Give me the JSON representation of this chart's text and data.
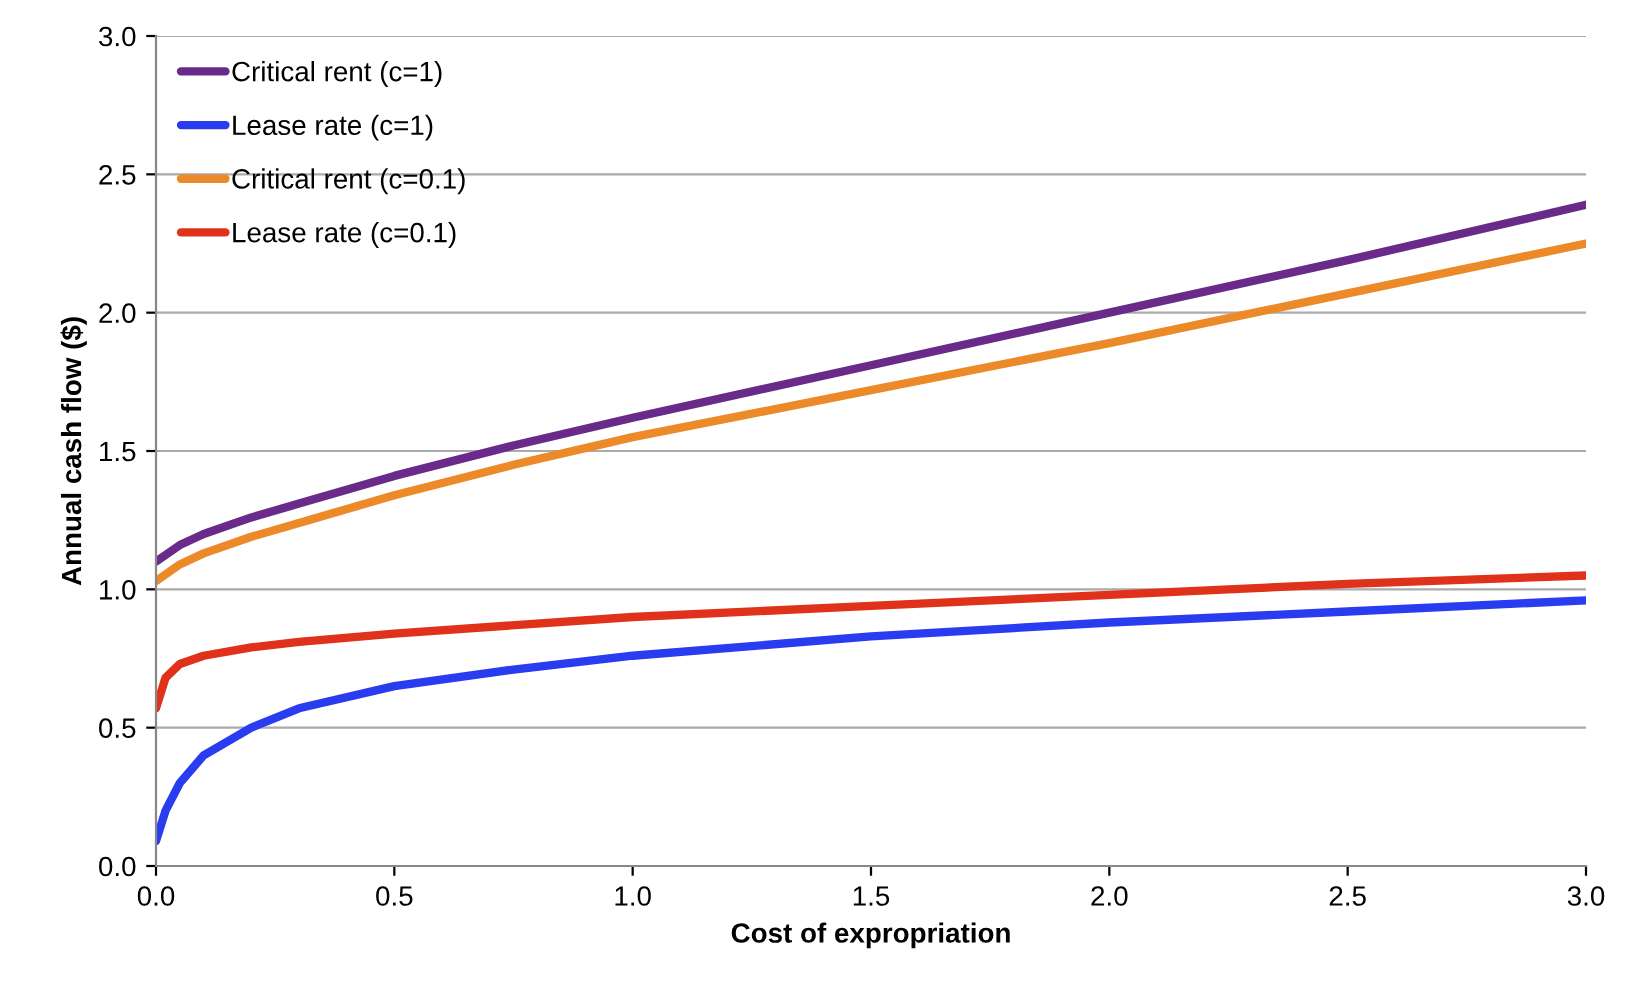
{
  "chart_data": {
    "type": "line",
    "xlabel": "Cost of expropriation",
    "ylabel": "Annual cash flow ($)",
    "xlim": [
      0,
      3
    ],
    "ylim": [
      0,
      3
    ],
    "xticks": [
      {
        "value": 0,
        "label": "0.0"
      },
      {
        "value": 0.5,
        "label": "0.5"
      },
      {
        "value": 1,
        "label": "1.0"
      },
      {
        "value": 1.5,
        "label": "1.5"
      },
      {
        "value": 2,
        "label": "2.0"
      },
      {
        "value": 2.5,
        "label": "2.5"
      },
      {
        "value": 3,
        "label": "3.0"
      }
    ],
    "yticks": [
      {
        "value": 0,
        "label": "0.0"
      },
      {
        "value": 0.5,
        "label": "0.5"
      },
      {
        "value": 1,
        "label": "1.0"
      },
      {
        "value": 1.5,
        "label": "1.5"
      },
      {
        "value": 2,
        "label": "2.0"
      },
      {
        "value": 2.5,
        "label": "2.5"
      },
      {
        "value": 3,
        "label": "3.0"
      }
    ],
    "grid": "y",
    "legend": "top left",
    "marker": "none",
    "line_style": "solid",
    "series": [
      {
        "name": "Critical rent (c=1)",
        "color": "#6a2a8a",
        "x": [
          0,
          0.05,
          0.1,
          0.2,
          0.3,
          0.5,
          0.75,
          1,
          1.5,
          2,
          2.5,
          3
        ],
        "values": [
          1.1,
          1.16,
          1.2,
          1.26,
          1.31,
          1.41,
          1.52,
          1.62,
          1.81,
          2.0,
          2.19,
          2.39
        ]
      },
      {
        "name": "Lease rate (c=1)",
        "color": "#2a3cf0",
        "x": [
          0,
          0.02,
          0.05,
          0.1,
          0.2,
          0.3,
          0.5,
          0.75,
          1,
          1.5,
          2,
          2.5,
          3
        ],
        "values": [
          0.09,
          0.2,
          0.3,
          0.4,
          0.5,
          0.57,
          0.65,
          0.71,
          0.76,
          0.83,
          0.88,
          0.92,
          0.96
        ]
      },
      {
        "name": "Critical rent (c=0.1)",
        "color": "#ec8a2a",
        "x": [
          0,
          0.05,
          0.1,
          0.2,
          0.3,
          0.5,
          0.75,
          1,
          1.5,
          2,
          2.5,
          3
        ],
        "values": [
          1.03,
          1.09,
          1.13,
          1.19,
          1.24,
          1.34,
          1.45,
          1.55,
          1.72,
          1.89,
          2.07,
          2.25
        ]
      },
      {
        "name": "Lease rate (c=0.1)",
        "color": "#e0321a",
        "x": [
          0,
          0.02,
          0.05,
          0.1,
          0.2,
          0.3,
          0.5,
          1,
          1.5,
          2,
          2.5,
          3
        ],
        "values": [
          0.57,
          0.68,
          0.73,
          0.76,
          0.79,
          0.81,
          0.84,
          0.9,
          0.94,
          0.98,
          1.02,
          1.05
        ]
      }
    ]
  }
}
